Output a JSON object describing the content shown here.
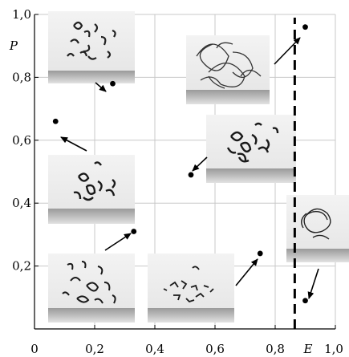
{
  "chart_data": {
    "type": "scatter",
    "xlabel": "E",
    "ylabel": "P",
    "xlim": [
      0,
      1.0
    ],
    "ylim": [
      0,
      1.0
    ],
    "grid": true,
    "x_ticks": [
      0,
      0.2,
      0.4,
      0.6,
      0.8,
      1.0
    ],
    "x_tick_labels": [
      "0",
      "0,2",
      "0,4",
      "0,6",
      "0,8",
      "1,0"
    ],
    "y_ticks": [
      0.2,
      0.4,
      0.6,
      0.8,
      1.0
    ],
    "y_tick_labels": [
      "0,2",
      "0,4",
      "0,6",
      "0,8",
      "1,0"
    ],
    "threshold_line": {
      "x": 0.865,
      "style": "dashed"
    },
    "points": [
      {
        "x": 0.26,
        "y": 0.78
      },
      {
        "x": 0.07,
        "y": 0.66
      },
      {
        "x": 0.33,
        "y": 0.31
      },
      {
        "x": 0.52,
        "y": 0.49
      },
      {
        "x": 0.75,
        "y": 0.24
      },
      {
        "x": 0.9,
        "y": 0.96
      },
      {
        "x": 0.9,
        "y": 0.09
      }
    ],
    "insets": [
      {
        "name": "inset-dispersed-strands"
      },
      {
        "name": "inset-large-tangle"
      },
      {
        "name": "inset-dense-cluster"
      },
      {
        "name": "inset-clumped-fibers"
      },
      {
        "name": "inset-loose-coils"
      },
      {
        "name": "inset-scattered-fragments"
      },
      {
        "name": "inset-single-coil"
      }
    ]
  },
  "colors": {
    "axis": "#000000",
    "grid": "#c8c8c8",
    "marker": "#000000"
  }
}
